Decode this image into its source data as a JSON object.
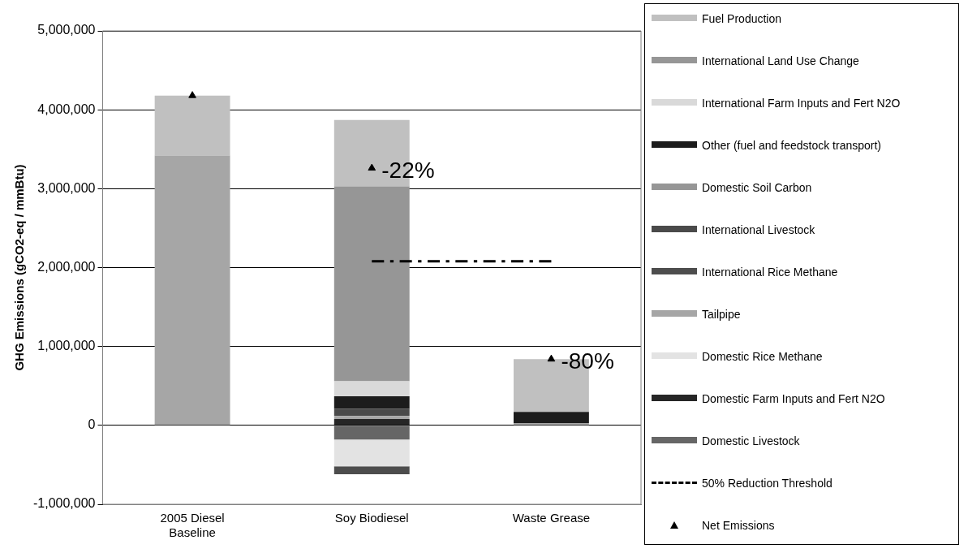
{
  "chart_data": {
    "type": "bar",
    "stacked": true,
    "ylabel": "GHG Emissions (gCO2-eq / mmBtu)",
    "categories": [
      "2005 Diesel Baseline",
      "Soy Biodiesel",
      "Waste Grease"
    ],
    "ylim": [
      -1000000,
      5000000
    ],
    "yticks": [
      {
        "value": -1000000,
        "label": "-1,000,000"
      },
      {
        "value": 0,
        "label": "0"
      },
      {
        "value": 1000000,
        "label": "1,000,000"
      },
      {
        "value": 2000000,
        "label": "2,000,000"
      },
      {
        "value": 3000000,
        "label": "3,000,000"
      },
      {
        "value": 4000000,
        "label": "4,000,000"
      },
      {
        "value": 5000000,
        "label": "5,000,000"
      }
    ],
    "grid": "y",
    "legend": "right",
    "series": [
      {
        "name": "Domestic Livestock",
        "color": "#666666",
        "values": [
          null,
          -180000,
          null
        ]
      },
      {
        "name": "Domestic Farm Inputs and Fert N2O",
        "color": "#262626",
        "values": [
          null,
          80000,
          null
        ]
      },
      {
        "name": "Domestic Rice Methane",
        "color": "#e3e3e3",
        "values": [
          null,
          -340000,
          null
        ]
      },
      {
        "name": "Tailpipe",
        "color": "#a6a6a6",
        "values": [
          3420000,
          40000,
          30000
        ]
      },
      {
        "name": "International Rice Methane",
        "color": "#4d4d4d",
        "values": [
          null,
          -100000,
          null
        ]
      },
      {
        "name": "International Livestock",
        "color": "#4a4a4a",
        "values": [
          null,
          90000,
          null
        ]
      },
      {
        "name": "Domestic Soil Carbon",
        "color": "#969696",
        "values": [
          null,
          null,
          null
        ]
      },
      {
        "name": "Other (fuel and feedstock transport)",
        "color": "#1c1c1c",
        "values": [
          null,
          160000,
          140000
        ]
      },
      {
        "name": "International Farm Inputs and Fert N2O",
        "color": "#d9d9d9",
        "values": [
          null,
          190000,
          null
        ]
      },
      {
        "name": "International Land Use Change",
        "color": "#969696",
        "values": [
          null,
          2470000,
          null
        ]
      },
      {
        "name": "Fuel Production",
        "color": "#c0c0c0",
        "values": [
          760000,
          840000,
          670000
        ]
      },
      {
        "name": "50% Reduction Threshold",
        "type": "line",
        "color": "#000000",
        "line_style": "dashed",
        "marker": "none",
        "x": [
          "Soy Biodiesel",
          "Waste Grease"
        ],
        "values": [
          2080000,
          2080000
        ]
      },
      {
        "name": "Net Emissions",
        "type": "scatter",
        "color": "#000000",
        "marker": "triangle",
        "x": [
          "2005 Diesel Baseline",
          "Soy Biodiesel",
          "Waste Grease"
        ],
        "values": [
          4180000,
          3260000,
          840000
        ]
      }
    ],
    "annotations": [
      {
        "text": "-22%",
        "x": "Soy Biodiesel",
        "y": 3260000
      },
      {
        "text": "-80%",
        "x": "Waste Grease",
        "y": 840000
      }
    ]
  }
}
